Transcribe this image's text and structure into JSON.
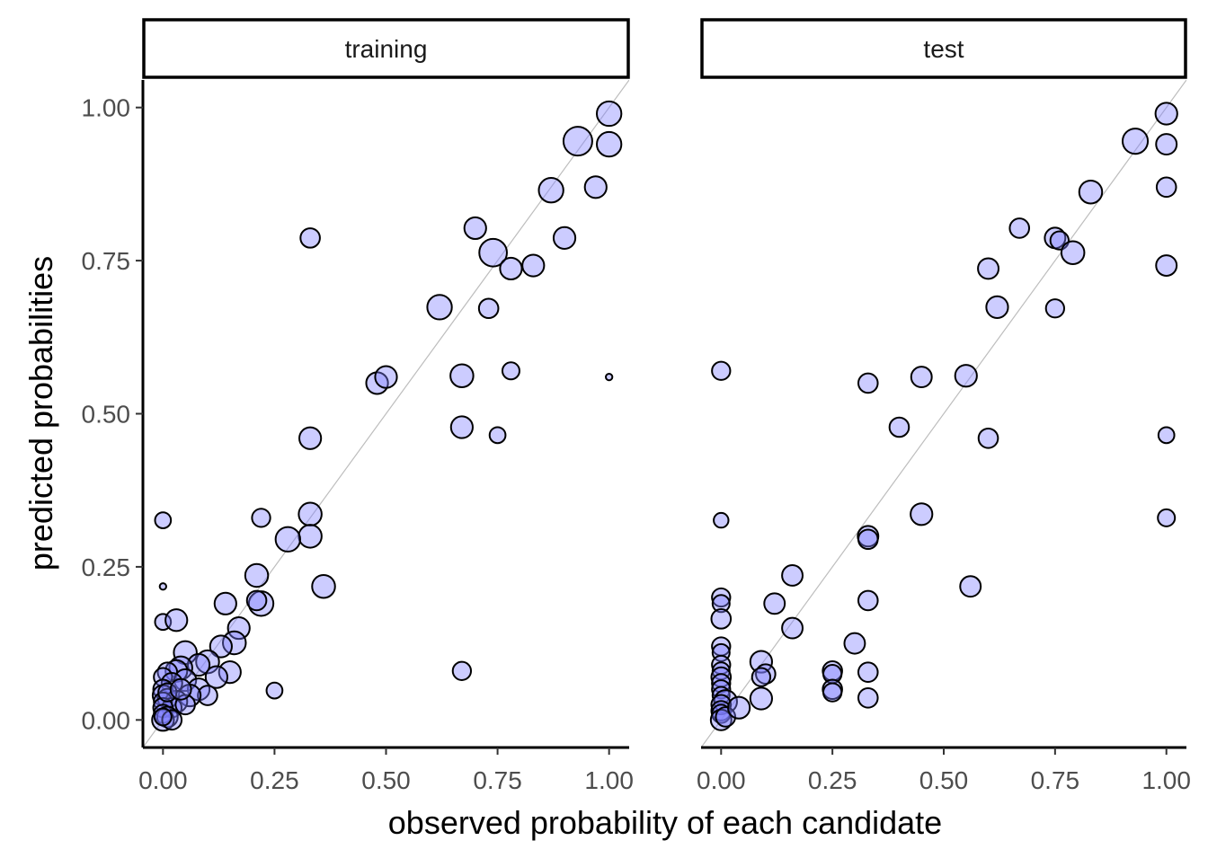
{
  "chart_data": {
    "type": "scatter",
    "xlabel": "observed probability of each candidate",
    "ylabel": "predicted probabilities",
    "xlim": [
      -0.045,
      1.045
    ],
    "ylim": [
      -0.045,
      1.045
    ],
    "x_ticks": [
      "0.00",
      "0.25",
      "0.50",
      "0.75",
      "1.00"
    ],
    "y_ticks": [
      "0.00",
      "0.25",
      "0.50",
      "0.75",
      "1.00"
    ],
    "x_tick_values": [
      0,
      0.25,
      0.5,
      0.75,
      1.0
    ],
    "y_tick_values": [
      0,
      0.25,
      0.5,
      0.75,
      1.0
    ],
    "grid": false,
    "reference_line": "y = x",
    "colors": {
      "point_fill": "#8080ff",
      "point_fill_opacity": 0.4,
      "point_stroke": "#000000",
      "diagonal": "#bdbdbd"
    },
    "size_scale": {
      "min_radius": 3,
      "max_radius": 16
    },
    "panels": [
      {
        "name": "training",
        "points": [
          [
            1.0,
            0.99,
            0.82
          ],
          [
            0.93,
            0.945,
            1.0
          ],
          [
            1.0,
            0.94,
            0.82
          ],
          [
            0.97,
            0.87,
            0.7
          ],
          [
            0.87,
            0.865,
            0.82
          ],
          [
            0.9,
            0.787,
            0.7
          ],
          [
            0.7,
            0.803,
            0.7
          ],
          [
            0.74,
            0.763,
            0.95
          ],
          [
            0.78,
            0.737,
            0.7
          ],
          [
            0.83,
            0.742,
            0.7
          ],
          [
            0.62,
            0.674,
            0.82
          ],
          [
            0.73,
            0.672,
            0.6
          ],
          [
            0.33,
            0.787,
            0.6
          ],
          [
            0.48,
            0.55,
            0.7
          ],
          [
            0.5,
            0.56,
            0.7
          ],
          [
            0.67,
            0.562,
            0.75
          ],
          [
            0.78,
            0.57,
            0.5
          ],
          [
            1.0,
            0.56,
            0.05
          ],
          [
            0.67,
            0.478,
            0.7
          ],
          [
            0.75,
            0.465,
            0.45
          ],
          [
            0.33,
            0.46,
            0.7
          ],
          [
            0.0,
            0.326,
            0.45
          ],
          [
            0.22,
            0.33,
            0.55
          ],
          [
            0.33,
            0.336,
            0.75
          ],
          [
            0.33,
            0.3,
            0.75
          ],
          [
            0.28,
            0.295,
            0.82
          ],
          [
            0.21,
            0.236,
            0.75
          ],
          [
            0.36,
            0.218,
            0.75
          ],
          [
            0.0,
            0.218,
            0.05
          ],
          [
            0.22,
            0.19,
            0.82
          ],
          [
            0.21,
            0.195,
            0.6
          ],
          [
            0.14,
            0.19,
            0.7
          ],
          [
            0.0,
            0.16,
            0.45
          ],
          [
            0.03,
            0.163,
            0.7
          ],
          [
            0.17,
            0.15,
            0.7
          ],
          [
            0.16,
            0.126,
            0.75
          ],
          [
            0.13,
            0.12,
            0.7
          ],
          [
            0.05,
            0.11,
            0.75
          ],
          [
            0.1,
            0.095,
            0.75
          ],
          [
            0.08,
            0.09,
            0.7
          ],
          [
            0.04,
            0.085,
            0.75
          ],
          [
            0.03,
            0.08,
            0.7
          ],
          [
            0.01,
            0.078,
            0.6
          ],
          [
            0.0,
            0.07,
            0.55
          ],
          [
            0.67,
            0.08,
            0.55
          ],
          [
            0.15,
            0.078,
            0.7
          ],
          [
            0.12,
            0.07,
            0.7
          ],
          [
            0.05,
            0.065,
            0.7
          ],
          [
            0.02,
            0.06,
            0.65
          ],
          [
            0.0,
            0.05,
            0.6
          ],
          [
            0.08,
            0.05,
            0.7
          ],
          [
            0.1,
            0.04,
            0.6
          ],
          [
            0.06,
            0.04,
            0.7
          ],
          [
            0.25,
            0.048,
            0.45
          ],
          [
            0.0,
            0.04,
            0.65
          ],
          [
            0.01,
            0.035,
            0.6
          ],
          [
            0.03,
            0.03,
            0.7
          ],
          [
            0.0,
            0.03,
            0.55
          ],
          [
            0.02,
            0.02,
            0.6
          ],
          [
            0.0,
            0.02,
            0.6
          ],
          [
            0.05,
            0.025,
            0.6
          ],
          [
            0.0,
            0.01,
            0.55
          ],
          [
            0.01,
            0.005,
            0.65
          ],
          [
            0.0,
            0.0,
            0.7
          ],
          [
            0.02,
            0.0,
            0.6
          ],
          [
            0.0,
            0.005,
            0.5
          ],
          [
            0.01,
            0.045,
            0.55
          ],
          [
            0.04,
            0.05,
            0.65
          ]
        ]
      },
      {
        "name": "test",
        "points": [
          [
            1.0,
            0.99,
            0.7
          ],
          [
            0.93,
            0.945,
            0.85
          ],
          [
            1.0,
            0.94,
            0.65
          ],
          [
            0.83,
            0.862,
            0.75
          ],
          [
            1.0,
            0.87,
            0.6
          ],
          [
            0.67,
            0.803,
            0.6
          ],
          [
            0.75,
            0.787,
            0.65
          ],
          [
            0.76,
            0.783,
            0.55
          ],
          [
            0.79,
            0.763,
            0.75
          ],
          [
            0.6,
            0.737,
            0.65
          ],
          [
            1.0,
            0.742,
            0.65
          ],
          [
            0.62,
            0.674,
            0.7
          ],
          [
            0.75,
            0.672,
            0.55
          ],
          [
            0.0,
            0.57,
            0.55
          ],
          [
            0.33,
            0.55,
            0.6
          ],
          [
            0.45,
            0.56,
            0.65
          ],
          [
            0.55,
            0.562,
            0.7
          ],
          [
            0.4,
            0.478,
            0.6
          ],
          [
            0.6,
            0.46,
            0.6
          ],
          [
            1.0,
            0.465,
            0.45
          ],
          [
            0.45,
            0.336,
            0.7
          ],
          [
            1.0,
            0.33,
            0.5
          ],
          [
            0.0,
            0.326,
            0.4
          ],
          [
            0.33,
            0.3,
            0.65
          ],
          [
            0.33,
            0.295,
            0.6
          ],
          [
            0.16,
            0.236,
            0.65
          ],
          [
            0.56,
            0.218,
            0.65
          ],
          [
            0.12,
            0.19,
            0.65
          ],
          [
            0.33,
            0.195,
            0.6
          ],
          [
            0.0,
            0.2,
            0.55
          ],
          [
            0.0,
            0.19,
            0.5
          ],
          [
            0.0,
            0.165,
            0.6
          ],
          [
            0.16,
            0.15,
            0.65
          ],
          [
            0.3,
            0.125,
            0.65
          ],
          [
            0.0,
            0.12,
            0.55
          ],
          [
            0.0,
            0.11,
            0.5
          ],
          [
            0.09,
            0.095,
            0.7
          ],
          [
            0.25,
            0.08,
            0.6
          ],
          [
            0.25,
            0.075,
            0.55
          ],
          [
            0.33,
            0.078,
            0.6
          ],
          [
            0.1,
            0.075,
            0.6
          ],
          [
            0.09,
            0.07,
            0.55
          ],
          [
            0.0,
            0.09,
            0.55
          ],
          [
            0.0,
            0.08,
            0.5
          ],
          [
            0.0,
            0.07,
            0.6
          ],
          [
            0.0,
            0.06,
            0.55
          ],
          [
            0.25,
            0.05,
            0.6
          ],
          [
            0.25,
            0.045,
            0.55
          ],
          [
            0.33,
            0.036,
            0.6
          ],
          [
            0.09,
            0.035,
            0.7
          ],
          [
            0.0,
            0.05,
            0.55
          ],
          [
            0.0,
            0.04,
            0.5
          ],
          [
            0.01,
            0.03,
            0.75
          ],
          [
            0.0,
            0.025,
            0.6
          ],
          [
            0.0,
            0.015,
            0.6
          ],
          [
            0.0,
            0.01,
            0.55
          ],
          [
            0.0,
            0.0,
            0.65
          ],
          [
            0.01,
            0.005,
            0.6
          ],
          [
            0.04,
            0.02,
            0.7
          ]
        ]
      }
    ]
  }
}
